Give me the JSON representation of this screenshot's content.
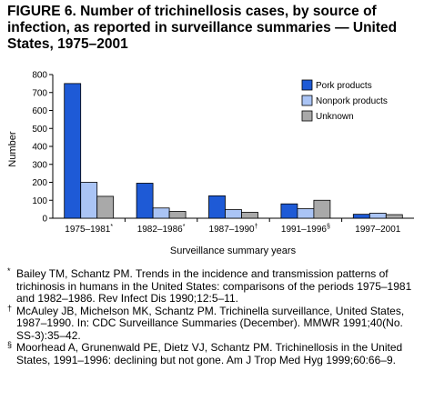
{
  "figure": {
    "title": "FIGURE 6. Number of trichinellosis cases, by source of infection, as reported in surveillance summaries — United States, 1975–2001"
  },
  "chart_data": {
    "type": "bar",
    "categories": [
      "1975–1981",
      "1982–1986",
      "1987–1990",
      "1991–1996",
      "1997–2001"
    ],
    "category_marks": [
      "*",
      "*",
      "†",
      "§",
      ""
    ],
    "series": [
      {
        "name": "Pork products",
        "color": "#1e5ad6",
        "values": [
          750,
          195,
          125,
          80,
          22
        ]
      },
      {
        "name": "Nonpork products",
        "color": "#aac4f5",
        "values": [
          200,
          57,
          48,
          53,
          28
        ]
      },
      {
        "name": "Unknown",
        "color": "#a9a9a9",
        "values": [
          122,
          38,
          33,
          100,
          20
        ]
      }
    ],
    "xlabel": "Surveillance summary years",
    "ylabel": "Number",
    "ylim": [
      0,
      800
    ],
    "yticks": [
      0,
      100,
      200,
      300,
      400,
      500,
      600,
      700,
      800
    ],
    "grid": false,
    "legend_position": "top-right"
  },
  "footnotes": [
    {
      "mark": "*",
      "text": "Bailey TM, Schantz PM. Trends in the incidence and transmission patterns of trichinosis in humans in the United States: comparisons of the periods 1975–1981 and 1982–1986. Rev Infect Dis 1990;12:5–11."
    },
    {
      "mark": "†",
      "text": "McAuley JB, Michelson MK, Schantz PM. Trichinella surveillance, United States, 1987–1990. In: CDC Surveillance Summaries (December). MMWR 1991;40(No. SS-3):35–42."
    },
    {
      "mark": "§",
      "text": "Moorhead A, Grunenwald PE, Dietz VJ, Schantz PM. Trichinellosis in the United States, 1991–1996: declining but not gone. Am J Trop Med Hyg 1999;60:66–9."
    }
  ]
}
